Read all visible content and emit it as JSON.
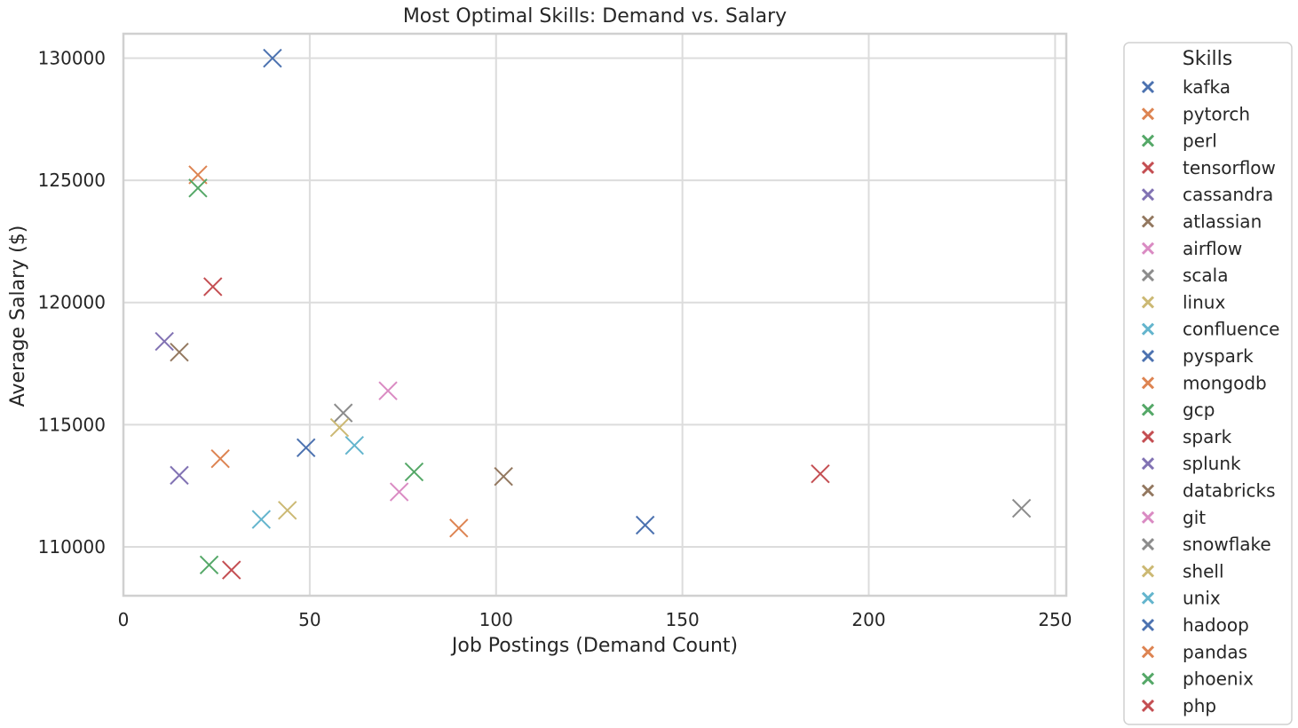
{
  "chart_data": {
    "type": "scatter",
    "title": "Most Optimal Skills: Demand vs. Salary",
    "xlabel": "Job Postings (Demand Count)",
    "ylabel": "Average Salary ($)",
    "xlim": [
      0,
      253
    ],
    "ylim": [
      108000,
      131000
    ],
    "xticks": [
      0,
      50,
      100,
      150,
      200,
      250
    ],
    "yticks": [
      110000,
      115000,
      120000,
      125000,
      130000
    ],
    "grid": true,
    "marker": "x",
    "legend": {
      "title": "Skills",
      "placement": "outside-right"
    },
    "series": [
      {
        "name": "kafka",
        "color": "#4c72b0",
        "x": 40,
        "y": 130000
      },
      {
        "name": "pytorch",
        "color": "#dd8452",
        "x": 20,
        "y": 125226
      },
      {
        "name": "perl",
        "color": "#55a868",
        "x": 20,
        "y": 124686
      },
      {
        "name": "tensorflow",
        "color": "#c44e52",
        "x": 24,
        "y": 120647
      },
      {
        "name": "cassandra",
        "color": "#8172b3",
        "x": 11,
        "y": 118407
      },
      {
        "name": "atlassian",
        "color": "#937860",
        "x": 15,
        "y": 117966
      },
      {
        "name": "airflow",
        "color": "#da8bc3",
        "x": 71,
        "y": 116387
      },
      {
        "name": "scala",
        "color": "#8c8c8c",
        "x": 59,
        "y": 115480
      },
      {
        "name": "linux",
        "color": "#ccb974",
        "x": 58,
        "y": 114883
      },
      {
        "name": "confluence",
        "color": "#64b5cd",
        "x": 62,
        "y": 114153
      },
      {
        "name": "pyspark",
        "color": "#4c72b0",
        "x": 49,
        "y": 114058
      },
      {
        "name": "mongodb",
        "color": "#dd8452",
        "x": 26,
        "y": 113608
      },
      {
        "name": "gcp",
        "color": "#55a868",
        "x": 78,
        "y": 113065
      },
      {
        "name": "spark",
        "color": "#c44e52",
        "x": 187,
        "y": 112989
      },
      {
        "name": "splunk",
        "color": "#8172b3",
        "x": 15,
        "y": 112928
      },
      {
        "name": "databricks",
        "color": "#937860",
        "x": 102,
        "y": 112881
      },
      {
        "name": "git",
        "color": "#da8bc3",
        "x": 74,
        "y": 112250
      },
      {
        "name": "snowflake",
        "color": "#8c8c8c",
        "x": 241,
        "y": 111578
      },
      {
        "name": "shell",
        "color": "#ccb974",
        "x": 44,
        "y": 111496
      },
      {
        "name": "unix",
        "color": "#64b5cd",
        "x": 37,
        "y": 111123
      },
      {
        "name": "hadoop",
        "color": "#4c72b0",
        "x": 140,
        "y": 110888
      },
      {
        "name": "pandas",
        "color": "#dd8452",
        "x": 90,
        "y": 110767
      },
      {
        "name": "phoenix",
        "color": "#55a868",
        "x": 23,
        "y": 109260
      },
      {
        "name": "php",
        "color": "#c44e52",
        "x": 29,
        "y": 109052
      }
    ]
  }
}
